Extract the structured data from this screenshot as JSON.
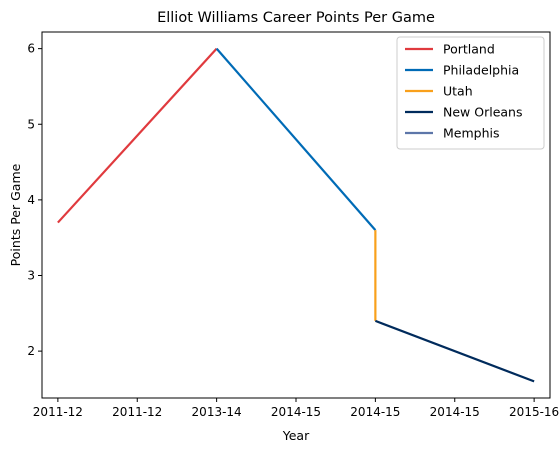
{
  "chart_data": {
    "type": "line",
    "title": "Elliot Williams Career Points Per Game",
    "xlabel": "Year",
    "ylabel": "Points Per Game",
    "x_tick_labels": [
      "2011-12",
      "2011-12",
      "2013-14",
      "2014-15",
      "2014-15",
      "2014-15",
      "2015-16"
    ],
    "y_ticks": [
      2,
      3,
      4,
      5,
      6
    ],
    "xlim": [
      -0.2,
      6.2
    ],
    "ylim": [
      1.38,
      6.22
    ],
    "grid": false,
    "legend_position": "top-right",
    "series": [
      {
        "name": "Portland",
        "color": "#e03a3e",
        "points": [
          [
            0,
            3.7
          ],
          [
            2,
            6.0
          ]
        ]
      },
      {
        "name": "Philadelphia",
        "color": "#006bb6",
        "points": [
          [
            2,
            6.0
          ],
          [
            4,
            3.6
          ]
        ]
      },
      {
        "name": "Utah",
        "color": "#f9a01b",
        "points": [
          [
            4,
            3.6
          ],
          [
            4,
            2.4
          ]
        ]
      },
      {
        "name": "New Orleans",
        "color": "#002b5c",
        "points": [
          [
            4,
            2.4
          ],
          [
            6,
            1.6
          ]
        ]
      },
      {
        "name": "Memphis",
        "color": "#5d76a9",
        "points": []
      }
    ]
  }
}
